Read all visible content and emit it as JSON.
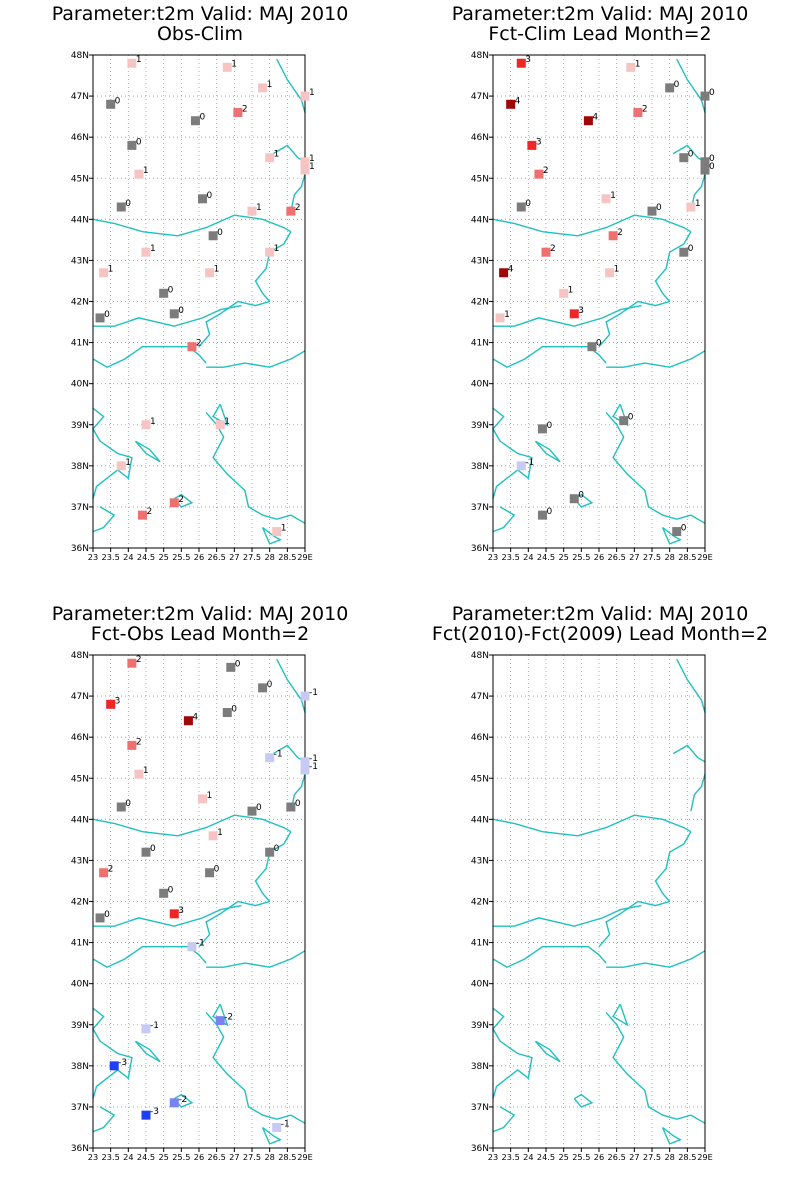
{
  "panels": [
    {
      "id": "p1",
      "title_line1": "Parameter:t2m Valid: MAJ 2010",
      "title_line2": "Obs-Clim",
      "stations": [
        [
          24.1,
          47.8,
          1
        ],
        [
          26.8,
          47.7,
          1
        ],
        [
          27.8,
          47.2,
          1
        ],
        [
          29.0,
          47.0,
          1
        ],
        [
          23.5,
          46.8,
          0
        ],
        [
          25.9,
          46.4,
          0
        ],
        [
          27.1,
          46.6,
          2
        ],
        [
          24.1,
          45.8,
          0
        ],
        [
          28.0,
          45.5,
          1
        ],
        [
          29.0,
          45.4,
          1
        ],
        [
          29.0,
          45.2,
          1
        ],
        [
          24.3,
          45.1,
          1
        ],
        [
          26.1,
          44.5,
          0
        ],
        [
          23.8,
          44.3,
          0
        ],
        [
          27.5,
          44.2,
          1
        ],
        [
          28.6,
          44.2,
          2
        ],
        [
          26.4,
          43.6,
          0
        ],
        [
          24.5,
          43.2,
          1
        ],
        [
          28.0,
          43.2,
          1
        ],
        [
          23.3,
          42.7,
          1
        ],
        [
          26.3,
          42.7,
          1
        ],
        [
          25.0,
          42.2,
          0
        ],
        [
          25.3,
          41.7,
          0
        ],
        [
          23.2,
          41.6,
          0
        ],
        [
          25.8,
          40.9,
          2
        ],
        [
          24.5,
          39.0,
          1
        ],
        [
          26.6,
          39.0,
          1
        ],
        [
          23.8,
          38.0,
          1
        ],
        [
          25.3,
          37.1,
          2
        ],
        [
          24.4,
          36.8,
          2
        ],
        [
          28.2,
          36.4,
          1
        ]
      ]
    },
    {
      "id": "p2",
      "title_line1": "Parameter:t2m Valid: MAJ 2010",
      "title_line2": "Fct-Clim Lead Month=2",
      "stations": [
        [
          23.8,
          47.8,
          3
        ],
        [
          26.9,
          47.7,
          1
        ],
        [
          28.0,
          47.2,
          0
        ],
        [
          29.0,
          47.0,
          0
        ],
        [
          23.5,
          46.8,
          4
        ],
        [
          25.7,
          46.4,
          4
        ],
        [
          27.1,
          46.6,
          2
        ],
        [
          24.1,
          45.8,
          3
        ],
        [
          28.4,
          45.5,
          0
        ],
        [
          29.0,
          45.4,
          0
        ],
        [
          29.0,
          45.2,
          0
        ],
        [
          24.3,
          45.1,
          2
        ],
        [
          26.2,
          44.5,
          1
        ],
        [
          23.8,
          44.3,
          0
        ],
        [
          27.5,
          44.2,
          0
        ],
        [
          28.6,
          44.3,
          1
        ],
        [
          26.4,
          43.6,
          2
        ],
        [
          24.5,
          43.2,
          2
        ],
        [
          28.4,
          43.2,
          0
        ],
        [
          23.3,
          42.7,
          4
        ],
        [
          26.3,
          42.7,
          1
        ],
        [
          25.0,
          42.2,
          1
        ],
        [
          25.3,
          41.7,
          3
        ],
        [
          23.2,
          41.6,
          1
        ],
        [
          25.8,
          40.9,
          0
        ],
        [
          24.4,
          38.9,
          0
        ],
        [
          26.7,
          39.1,
          0
        ],
        [
          23.8,
          38.0,
          -1
        ],
        [
          25.3,
          37.2,
          0
        ],
        [
          24.4,
          36.8,
          0
        ],
        [
          28.2,
          36.4,
          0
        ]
      ]
    },
    {
      "id": "p3",
      "title_line1": "Parameter:t2m Valid: MAJ 2010",
      "title_line2": "Fct-Obs Lead Month=2",
      "stations": [
        [
          24.1,
          47.8,
          2
        ],
        [
          26.9,
          47.7,
          0
        ],
        [
          27.8,
          47.2,
          0
        ],
        [
          29.0,
          47.0,
          -1
        ],
        [
          23.5,
          46.8,
          3
        ],
        [
          25.7,
          46.4,
          4
        ],
        [
          26.8,
          46.6,
          0
        ],
        [
          24.1,
          45.8,
          2
        ],
        [
          28.0,
          45.5,
          -1
        ],
        [
          29.0,
          45.4,
          -1
        ],
        [
          29.0,
          45.2,
          -1
        ],
        [
          24.3,
          45.1,
          1
        ],
        [
          26.1,
          44.5,
          1
        ],
        [
          23.8,
          44.3,
          0
        ],
        [
          27.5,
          44.2,
          0
        ],
        [
          28.6,
          44.3,
          0
        ],
        [
          26.4,
          43.6,
          1
        ],
        [
          24.5,
          43.2,
          0
        ],
        [
          28.0,
          43.2,
          0
        ],
        [
          23.3,
          42.7,
          2
        ],
        [
          26.3,
          42.7,
          0
        ],
        [
          25.0,
          42.2,
          0
        ],
        [
          25.3,
          41.7,
          3
        ],
        [
          23.2,
          41.6,
          0
        ],
        [
          25.8,
          40.9,
          -1
        ],
        [
          24.5,
          38.9,
          -1
        ],
        [
          26.6,
          39.1,
          -2
        ],
        [
          23.6,
          38.0,
          -3
        ],
        [
          25.3,
          37.1,
          -2
        ],
        [
          24.5,
          36.8,
          -3
        ],
        [
          28.2,
          36.5,
          -1
        ]
      ]
    },
    {
      "id": "p4",
      "title_line1": "Parameter:t2m Valid: MAJ 2010",
      "title_line2": "Fct(2010)-Fct(2009) Lead Month=2",
      "stations": []
    }
  ],
  "axis": {
    "lat_labels": [
      "48N",
      "47N",
      "46N",
      "45N",
      "44N",
      "43N",
      "42N",
      "41N",
      "40N",
      "39N",
      "38N",
      "37N",
      "36N"
    ],
    "lon_labels": [
      "23",
      "23.5",
      "24",
      "24.5",
      "25",
      "25.5",
      "26",
      "26.5",
      "27",
      "27.5",
      "28",
      "28.5",
      "29E"
    ],
    "lat_range": [
      36,
      48
    ],
    "lon_range": [
      23,
      29
    ],
    "grid": "dotted"
  },
  "colors": {
    "coast": "#20c0c0",
    "grid": "#9a9a9a",
    "values": {
      "-3": "#1f3dff",
      "-2": "#7a82f0",
      "-1": "#c8caf6",
      "0": "#7c7c7c",
      "1": "#f7c4c4",
      "2": "#ef7070",
      "3": "#ee2626",
      "4": "#a00808"
    }
  }
}
